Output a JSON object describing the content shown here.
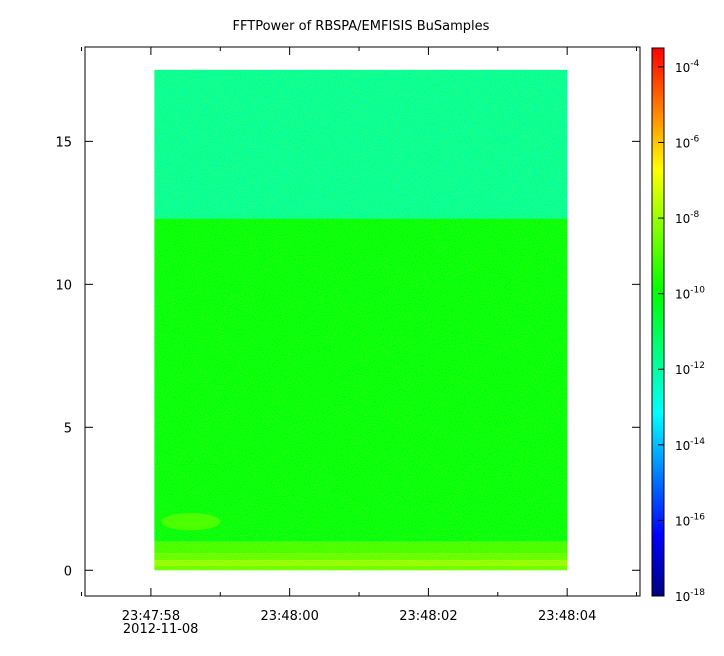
{
  "chart_data": {
    "type": "heatmap",
    "title": "FFTPower of RBSPA/EMFISIS  BuSamples",
    "xlabel": "",
    "ylabel": "",
    "x_ticks": [
      {
        "value": 0,
        "label": "23:47:58",
        "sublabel": "2012-11-08"
      },
      {
        "value": 2,
        "label": "23:48:00",
        "sublabel": ""
      },
      {
        "value": 4,
        "label": "23:48:02",
        "sublabel": ""
      },
      {
        "value": 6,
        "label": "23:48:04",
        "sublabel": ""
      }
    ],
    "x_minor_ticks": [
      -1,
      1,
      3,
      5,
      7
    ],
    "xlim": [
      -0.95,
      7.05
    ],
    "y_ticks": [
      0,
      5,
      10,
      15
    ],
    "ylim": [
      -0.9,
      18.3
    ],
    "data_extent": {
      "x": [
        0.05,
        6.0
      ],
      "y": [
        0,
        17.5
      ]
    },
    "bands": [
      {
        "y": [
          0,
          0.15
        ],
        "log10_power": -8.6
      },
      {
        "y": [
          0.15,
          0.35
        ],
        "log10_power": -8.1
      },
      {
        "y": [
          0.35,
          0.6
        ],
        "log10_power": -8.7
      },
      {
        "y": [
          0.6,
          1.0
        ],
        "log10_power": -9.1
      },
      {
        "y": [
          1.0,
          12.3
        ],
        "log10_power": -10.1
      },
      {
        "y": [
          12.3,
          17.5
        ],
        "log10_power": -11.9
      }
    ],
    "features": [
      {
        "x": [
          0.15,
          1.0
        ],
        "y": [
          1.4,
          2.0
        ],
        "log10_power": -8.9
      }
    ],
    "colorbar": {
      "scale": "log",
      "range": [
        -18,
        -3.5
      ],
      "base": "10",
      "tick_exponents": [
        -4,
        -6,
        -8,
        -10,
        -12,
        -14,
        -16,
        -18
      ],
      "colormap": [
        "#00007f",
        "#0000ff",
        "#007fff",
        "#00ffff",
        "#00ff7f",
        "#00ff00",
        "#7fff00",
        "#ffff00",
        "#ff7f00",
        "#ff0000"
      ]
    }
  }
}
